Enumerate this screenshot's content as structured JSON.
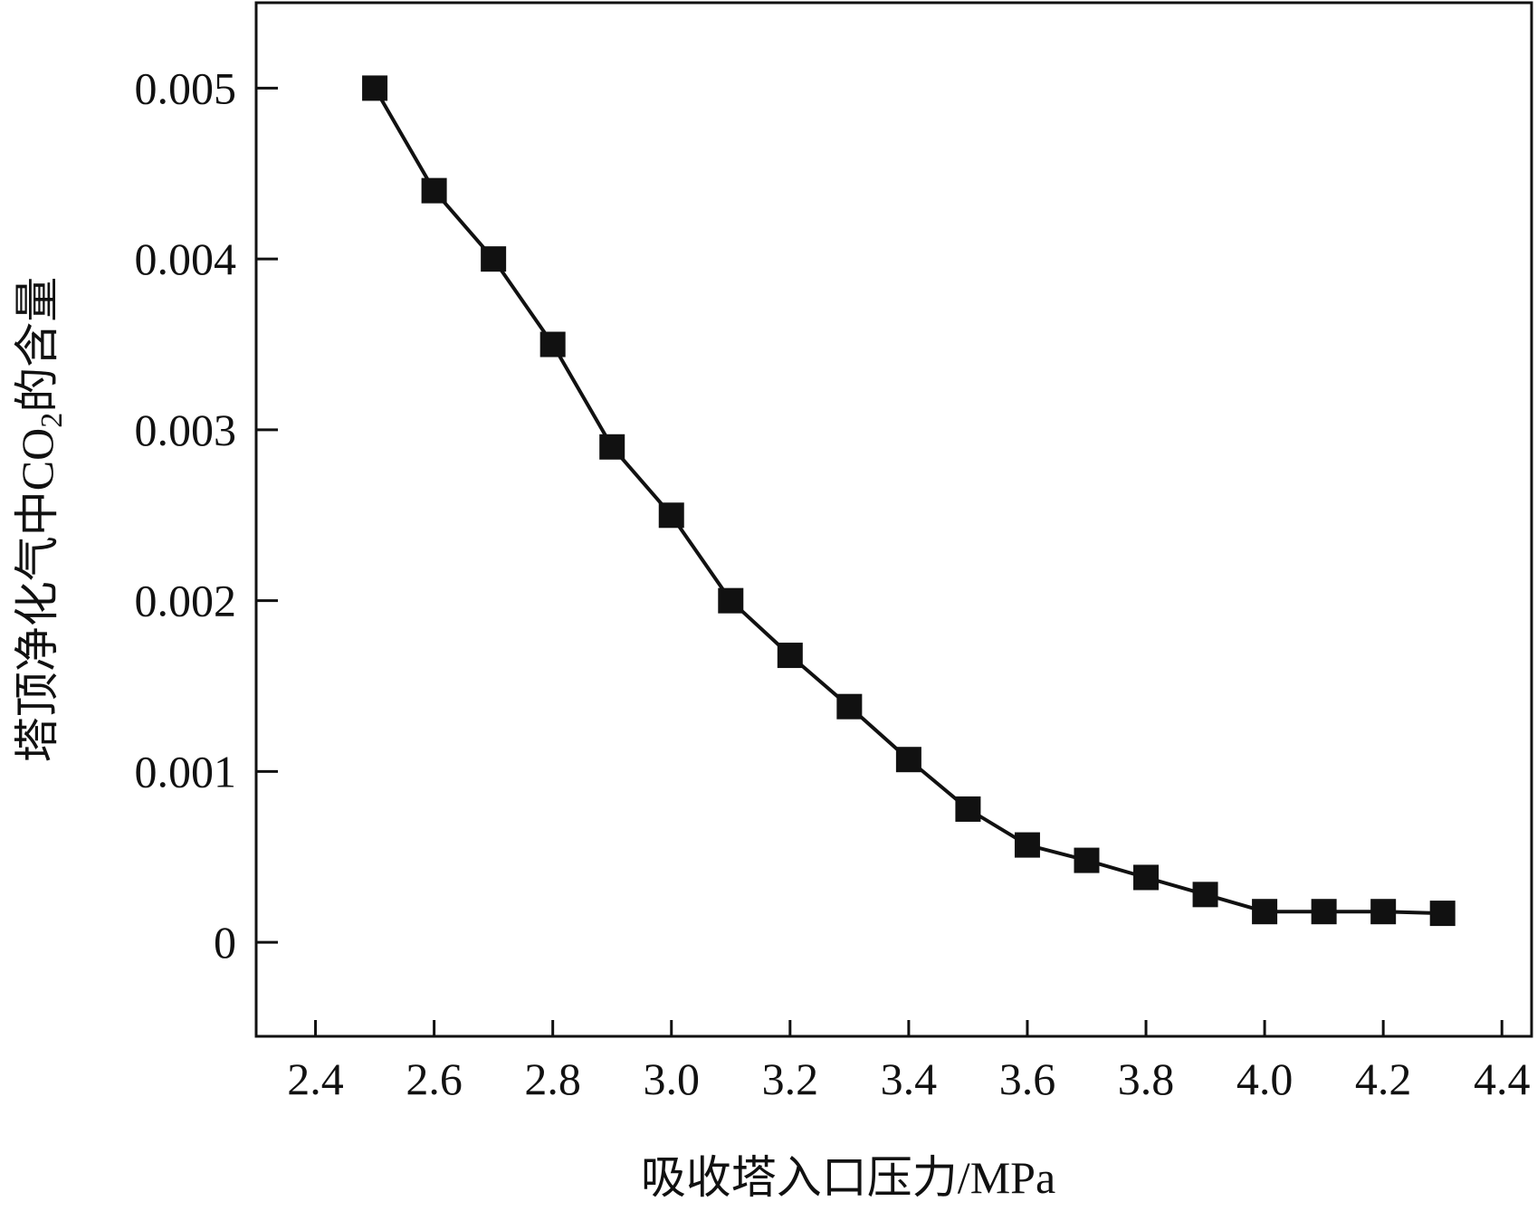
{
  "chart_data": {
    "type": "line",
    "title": "",
    "xlabel": "吸收塔入口压力/MPa",
    "ylabel": {
      "before": "塔顶净化气中CO",
      "sub": "2",
      "after": "的含量"
    },
    "xlim": [
      2.3,
      4.45
    ],
    "ylim": [
      -0.00055,
      0.0055
    ],
    "x_ticks": [
      2.4,
      2.6,
      2.8,
      3.0,
      3.2,
      3.4,
      3.6,
      3.8,
      4.0,
      4.2,
      4.4
    ],
    "x_tick_labels": [
      "2.4",
      "2.6",
      "2.8",
      "3.0",
      "3.2",
      "3.4",
      "3.6",
      "3.8",
      "4.0",
      "4.2",
      "4.4"
    ],
    "y_ticks": [
      0,
      0.001,
      0.002,
      0.003,
      0.004,
      0.005
    ],
    "y_tick_labels": [
      "0",
      "0.001",
      "0.002",
      "0.003",
      "0.004",
      "0.005"
    ],
    "grid": false,
    "legend": "none",
    "series": [
      {
        "marker": "square",
        "color": "#111111",
        "x": [
          2.5,
          2.6,
          2.7,
          2.8,
          2.9,
          3.0,
          3.1,
          3.2,
          3.3,
          3.4,
          3.5,
          3.6,
          3.7,
          3.8,
          3.9,
          4.0,
          4.1,
          4.2,
          4.3
        ],
        "y": [
          0.005,
          0.0044,
          0.004,
          0.0035,
          0.0029,
          0.0025,
          0.002,
          0.00168,
          0.00138,
          0.00107,
          0.00078,
          0.00057,
          0.00048,
          0.00038,
          0.00028,
          0.00018,
          0.00018,
          0.00018,
          0.00017
        ]
      }
    ]
  }
}
